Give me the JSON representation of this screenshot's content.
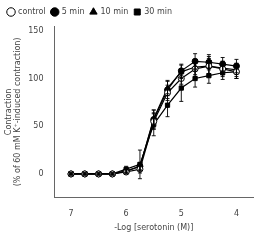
{
  "chart_data": {
    "type": "line",
    "xlabel": "-Log [serotonin (M)]",
    "ylabel": "Contraction\n(% of 60 mM K⁺-induced contraction)",
    "x": [
      7,
      6.75,
      6.5,
      6.25,
      6,
      5.75,
      5.5,
      5.25,
      5,
      4.75,
      4.5,
      4.25,
      4
    ],
    "xlim": [
      7.3,
      3.7
    ],
    "xticks": [
      4,
      5,
      6,
      7
    ],
    "ylim": [
      -25,
      155
    ],
    "yticks": [
      0,
      50,
      100,
      150
    ],
    "grid": false,
    "legend": "upper left",
    "series": [
      {
        "name": "control",
        "color": "#000000",
        "marker": "circle-open",
        "values": [
          0,
          0,
          0,
          0,
          2,
          5,
          55,
          85,
          100,
          110,
          113,
          110,
          107
        ],
        "yerr": [
          1,
          1,
          1,
          1,
          2,
          4,
          8,
          8,
          6,
          8,
          10,
          8,
          7
        ]
      },
      {
        "name": "5 min",
        "color": "#000000",
        "marker": "circle",
        "values": [
          0,
          0,
          0,
          0,
          3,
          8,
          57,
          88,
          108,
          118,
          117,
          115,
          113
        ],
        "yerr": [
          1,
          1,
          1,
          1,
          2,
          4,
          10,
          9,
          7,
          8,
          8,
          7,
          7
        ]
      },
      {
        "name": "10 min",
        "color": "#000000",
        "marker": "triangle",
        "values": [
          0,
          0,
          0,
          0,
          3,
          8,
          58,
          90,
          107,
          112,
          113,
          111,
          109
        ],
        "yerr": [
          1,
          1,
          1,
          1,
          2,
          4,
          9,
          8,
          7,
          8,
          8,
          7,
          7
        ]
      },
      {
        "name": "30 min",
        "color": "#000000",
        "marker": "square",
        "values": [
          0,
          0,
          0,
          0,
          5,
          10,
          52,
          72,
          90,
          100,
          103,
          106,
          107
        ],
        "yerr": [
          1,
          1,
          1,
          1,
          3,
          15,
          12,
          12,
          14,
          9,
          8,
          7,
          7
        ]
      }
    ]
  }
}
